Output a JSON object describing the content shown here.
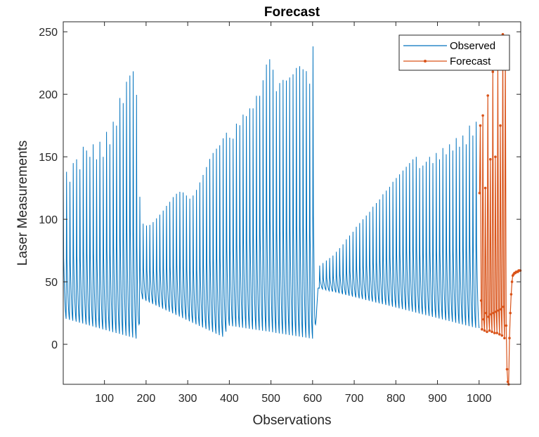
{
  "chart_data": {
    "type": "line",
    "title": "Forecast",
    "xlabel": "Observations",
    "ylabel": "Laser Measurements",
    "xlim": [
      1,
      1100
    ],
    "ylim": [
      -32,
      258
    ],
    "xticks": [
      100,
      200,
      300,
      400,
      500,
      600,
      700,
      800,
      900,
      1000
    ],
    "yticks": [
      0,
      50,
      100,
      150,
      200,
      250
    ],
    "grid": false,
    "legend": "top-right",
    "colors": {
      "observed": "#0072BD",
      "forecast": "#D95319"
    },
    "series": [
      {
        "name": "Observed",
        "x_range": [
          1,
          1000
        ],
        "peaks": [
          [
            1,
            140
          ],
          [
            9,
            138
          ],
          [
            17,
            130
          ],
          [
            25,
            145
          ],
          [
            33,
            148
          ],
          [
            41,
            140
          ],
          [
            49,
            158
          ],
          [
            57,
            155
          ],
          [
            65,
            150
          ],
          [
            73,
            160
          ],
          [
            81,
            148
          ],
          [
            89,
            162
          ],
          [
            97,
            150
          ],
          [
            105,
            170
          ],
          [
            113,
            160
          ],
          [
            121,
            178
          ],
          [
            129,
            175
          ],
          [
            137,
            197
          ],
          [
            145,
            193
          ],
          [
            153,
            210
          ],
          [
            161,
            215
          ],
          [
            166,
            234
          ],
          [
            171,
            208
          ],
          [
            176,
            212
          ],
          [
            183,
            125
          ],
          [
            191,
            97
          ],
          [
            199,
            95
          ],
          [
            207,
            95
          ],
          [
            215,
            97
          ],
          [
            223,
            100
          ],
          [
            231,
            103
          ],
          [
            239,
            106
          ],
          [
            247,
            110
          ],
          [
            255,
            113
          ],
          [
            263,
            117
          ],
          [
            271,
            120
          ],
          [
            279,
            122
          ],
          [
            287,
            122
          ],
          [
            295,
            120
          ],
          [
            303,
            116
          ],
          [
            311,
            118
          ],
          [
            319,
            122
          ],
          [
            327,
            128
          ],
          [
            335,
            134
          ],
          [
            343,
            140
          ],
          [
            351,
            147
          ],
          [
            359,
            152
          ],
          [
            367,
            156
          ],
          [
            375,
            158
          ],
          [
            383,
            163
          ],
          [
            391,
            170
          ],
          [
            399,
            167
          ],
          [
            407,
            160
          ],
          [
            415,
            178
          ],
          [
            423,
            172
          ],
          [
            431,
            185
          ],
          [
            439,
            180
          ],
          [
            447,
            190
          ],
          [
            455,
            185
          ],
          [
            463,
            200
          ],
          [
            471,
            195
          ],
          [
            479,
            210
          ],
          [
            487,
            215
          ],
          [
            492,
            237
          ],
          [
            497,
            228
          ],
          [
            503,
            232
          ],
          [
            509,
            195
          ],
          [
            517,
            210
          ],
          [
            525,
            208
          ],
          [
            533,
            215
          ],
          [
            541,
            207
          ],
          [
            549,
            220
          ],
          [
            557,
            212
          ],
          [
            565,
            230
          ],
          [
            573,
            215
          ],
          [
            581,
            225
          ],
          [
            589,
            212
          ],
          [
            597,
            205
          ],
          [
            603,
            255
          ],
          [
            609,
            22
          ],
          [
            617,
            63
          ],
          [
            625,
            65
          ],
          [
            633,
            67
          ],
          [
            641,
            69
          ],
          [
            649,
            71
          ],
          [
            657,
            74
          ],
          [
            665,
            77
          ],
          [
            673,
            80
          ],
          [
            681,
            84
          ],
          [
            689,
            87
          ],
          [
            697,
            90
          ],
          [
            705,
            94
          ],
          [
            713,
            97
          ],
          [
            721,
            100
          ],
          [
            729,
            103
          ],
          [
            737,
            106
          ],
          [
            745,
            110
          ],
          [
            753,
            113
          ],
          [
            761,
            116
          ],
          [
            769,
            120
          ],
          [
            777,
            123
          ],
          [
            785,
            126
          ],
          [
            793,
            130
          ],
          [
            801,
            133
          ],
          [
            809,
            136
          ],
          [
            817,
            139
          ],
          [
            825,
            142
          ],
          [
            833,
            145
          ],
          [
            841,
            148
          ],
          [
            849,
            150
          ],
          [
            857,
            141
          ],
          [
            865,
            143
          ],
          [
            873,
            146
          ],
          [
            881,
            150
          ],
          [
            889,
            145
          ],
          [
            897,
            153
          ],
          [
            905,
            148
          ],
          [
            913,
            157
          ],
          [
            921,
            152
          ],
          [
            929,
            160
          ],
          [
            937,
            155
          ],
          [
            945,
            165
          ],
          [
            953,
            158
          ],
          [
            961,
            167
          ],
          [
            969,
            160
          ],
          [
            977,
            175
          ],
          [
            985,
            167
          ],
          [
            993,
            178
          ]
        ],
        "troughs": [
          [
            5,
            20
          ],
          [
            180,
            3
          ],
          [
            190,
            36
          ],
          [
            385,
            5
          ],
          [
            400,
            14
          ],
          [
            605,
            3
          ],
          [
            613,
            45
          ],
          [
            995,
            12
          ]
        ]
      },
      {
        "name": "Forecast",
        "x_range": [
          1001,
          1100
        ],
        "points": [
          [
            1001,
            121
          ],
          [
            1003,
            175
          ],
          [
            1005,
            35
          ],
          [
            1007,
            12
          ],
          [
            1009,
            183
          ],
          [
            1011,
            20
          ],
          [
            1013,
            11
          ],
          [
            1015,
            125
          ],
          [
            1017,
            25
          ],
          [
            1019,
            10
          ],
          [
            1021,
            199
          ],
          [
            1023,
            22
          ],
          [
            1025,
            11
          ],
          [
            1027,
            148
          ],
          [
            1029,
            24
          ],
          [
            1031,
            10
          ],
          [
            1033,
            218
          ],
          [
            1035,
            25
          ],
          [
            1037,
            9
          ],
          [
            1039,
            150
          ],
          [
            1041,
            26
          ],
          [
            1043,
            9
          ],
          [
            1045,
            226
          ],
          [
            1047,
            27
          ],
          [
            1049,
            8
          ],
          [
            1051,
            175
          ],
          [
            1053,
            28
          ],
          [
            1055,
            7
          ],
          [
            1057,
            248
          ],
          [
            1059,
            30
          ],
          [
            1061,
            5
          ],
          [
            1063,
            238
          ],
          [
            1065,
            15
          ],
          [
            1067,
            -20
          ],
          [
            1069,
            -30
          ],
          [
            1071,
            -32
          ],
          [
            1073,
            5
          ],
          [
            1075,
            25
          ],
          [
            1077,
            40
          ],
          [
            1079,
            50
          ],
          [
            1081,
            55
          ],
          [
            1083,
            56
          ],
          [
            1085,
            57
          ],
          [
            1087,
            57
          ],
          [
            1089,
            58
          ],
          [
            1091,
            58
          ],
          [
            1093,
            58
          ],
          [
            1095,
            59
          ],
          [
            1097,
            59
          ],
          [
            1099,
            59
          ]
        ]
      }
    ]
  }
}
